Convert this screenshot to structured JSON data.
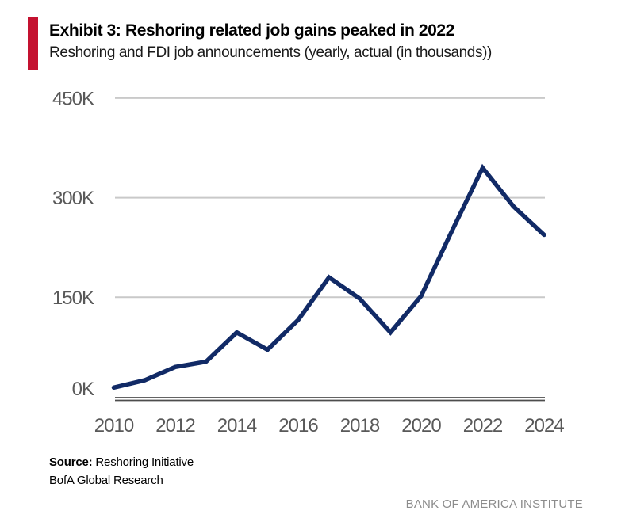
{
  "header": {
    "exhibit_title": "Exhibit 3: Reshoring related job gains peaked in 2022",
    "subtitle": "Reshoring and FDI job announcements (yearly, actual (in thousands))",
    "accent_color": "#C41230"
  },
  "chart_data": {
    "type": "line",
    "title": "Exhibit 3: Reshoring related job gains peaked in 2022",
    "subtitle": "Reshoring and FDI job announcements (yearly, actual (in thousands))",
    "x": [
      2010,
      2011,
      2012,
      2013,
      2014,
      2015,
      2016,
      2017,
      2018,
      2019,
      2020,
      2021,
      2022,
      2023,
      2024
    ],
    "series": [
      {
        "name": "Reshoring and FDI job announcements (thousands)",
        "values": [
          14,
          25,
          45,
          53,
          97,
          71,
          116,
          180,
          148,
          97,
          152,
          250,
          345,
          287,
          244
        ],
        "color": "#112A66"
      }
    ],
    "xlabel": "",
    "ylabel": "",
    "ylim": [
      0,
      450
    ],
    "y_tick_values": [
      0,
      150,
      300,
      450
    ],
    "y_tick_labels": [
      "0K",
      "150K",
      "300K",
      "450K"
    ],
    "x_tick_values": [
      2010,
      2012,
      2014,
      2016,
      2018,
      2020,
      2022,
      2024
    ],
    "x_tick_labels": [
      "2010",
      "2012",
      "2014",
      "2016",
      "2018",
      "2020",
      "2022",
      "2024"
    ],
    "grid": "horizontal",
    "legend": "none",
    "gridline_color": "#C9C9C9",
    "axis_color": "#4D4D4D",
    "tick_label_color": "#595959"
  },
  "footer": {
    "source_label": "Source:",
    "source_text": " Reshoring Initiative",
    "source_line2": "BofA Global Research",
    "brand": "BANK OF AMERICA INSTITUTE"
  }
}
